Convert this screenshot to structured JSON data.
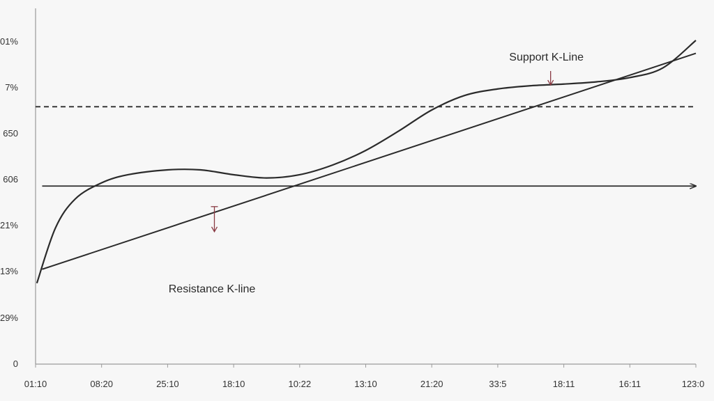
{
  "chart_data": {
    "type": "line",
    "title": "",
    "xlabel": "",
    "ylabel": "",
    "x_ticks": [
      "01:10",
      "08:20",
      "25:10",
      "18:10",
      "10:22",
      "13:10",
      "21:20",
      "33:5",
      "18:11",
      "16:11",
      "123:0"
    ],
    "y_ticks": [
      "0",
      "29%",
      "13%",
      "21%",
      "606",
      "650",
      "7%",
      "01%"
    ],
    "grid": false,
    "series": [
      {
        "name": "",
        "kind": "curve",
        "color": "#2b2b2b",
        "points": [
          [
            0.02,
            2.5
          ],
          [
            0.3,
            4.2
          ],
          [
            0.6,
            5.1
          ],
          [
            1.0,
            5.6
          ],
          [
            1.4,
            5.85
          ],
          [
            2.0,
            6.0
          ],
          [
            2.5,
            6.0
          ],
          [
            3.0,
            5.85
          ],
          [
            3.5,
            5.75
          ],
          [
            4.0,
            5.85
          ],
          [
            4.5,
            6.15
          ],
          [
            5.0,
            6.6
          ],
          [
            5.5,
            7.2
          ],
          [
            6.0,
            7.85
          ],
          [
            6.5,
            8.3
          ],
          [
            7.0,
            8.5
          ],
          [
            7.5,
            8.6
          ],
          [
            8.0,
            8.65
          ],
          [
            8.5,
            8.72
          ],
          [
            9.0,
            8.85
          ],
          [
            9.5,
            9.15
          ],
          [
            10.0,
            10.0
          ]
        ]
      },
      {
        "name": "",
        "kind": "straight",
        "color": "#2b2b2b",
        "points": [
          [
            0.1,
            2.93
          ],
          [
            10.0,
            9.6
          ]
        ]
      }
    ],
    "reference_lines": [
      {
        "label": "",
        "y": 7.95,
        "style": "dashed",
        "x_start": 0.0,
        "x_end": 10.0
      },
      {
        "label": "",
        "y": 5.5,
        "style": "arrow",
        "x_start": 0.1,
        "x_end": 10.0
      }
    ],
    "annotations": [
      {
        "text": "Support K-Line",
        "points_to": [
          7.8,
          8.58
        ]
      },
      {
        "text": "Resistance K-line",
        "points_to": [
          2.55,
          4.8
        ]
      }
    ],
    "ylim": [
      0,
      10
    ],
    "xlim": [
      0,
      10
    ]
  },
  "colors": {
    "line": "#2b2b2b",
    "axis": "#9a9a9a",
    "annotation_arrow": "#8a3b44",
    "background": "#f7f7f7"
  }
}
